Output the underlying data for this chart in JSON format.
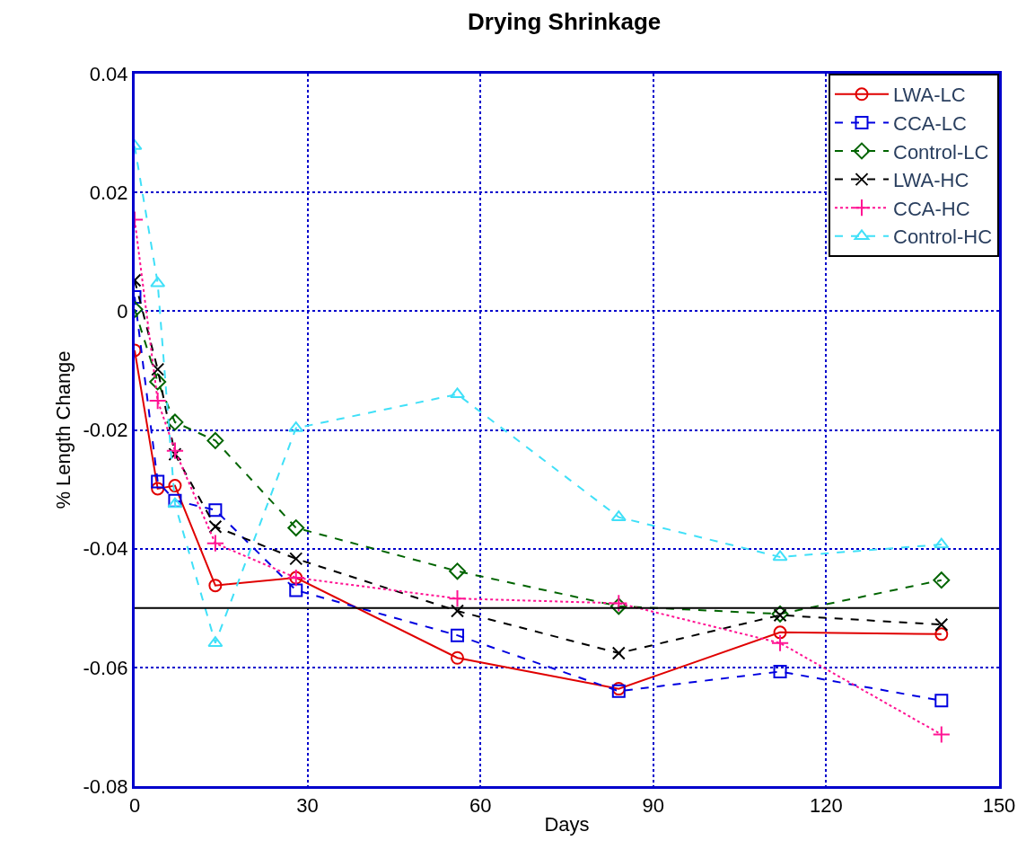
{
  "chart_data": {
    "type": "line",
    "title": "Drying Shrinkage",
    "xlabel": "Days",
    "ylabel": "% Length Change",
    "x": [
      0,
      4,
      7,
      14,
      28,
      56,
      84,
      112,
      140
    ],
    "series": [
      {
        "name": "LWA-LC",
        "color": "#e00000",
        "marker": "circle",
        "line_style": "solid",
        "values": [
          -0.0066,
          -0.0299,
          -0.0294,
          -0.0462,
          -0.0449,
          -0.0584,
          -0.0636,
          -0.0541,
          -0.0544
        ]
      },
      {
        "name": "CCA-LC",
        "color": "#0000e0",
        "marker": "square",
        "line_style": "dashed",
        "values": [
          0.0024,
          -0.0287,
          -0.0319,
          -0.0335,
          -0.047,
          -0.0546,
          -0.064,
          -0.0607,
          -0.0656
        ]
      },
      {
        "name": "Control-LC",
        "color": "#006400",
        "marker": "diamond",
        "line_style": "dashed",
        "values": [
          0.0003,
          -0.0119,
          -0.0187,
          -0.0218,
          -0.0365,
          -0.0438,
          -0.0497,
          -0.051,
          -0.0453
        ]
      },
      {
        "name": "LWA-HC",
        "color": "#000000",
        "marker": "x",
        "line_style": "dashed",
        "values": [
          0.0052,
          -0.0098,
          -0.0241,
          -0.0363,
          -0.0417,
          -0.0505,
          -0.0576,
          -0.0512,
          -0.0528
        ]
      },
      {
        "name": "CCA-HC",
        "color": "#ff1493",
        "marker": "cross",
        "line_style": "dotted",
        "values": [
          0.0154,
          -0.0151,
          -0.0235,
          -0.0391,
          -0.0449,
          -0.0484,
          -0.0492,
          -0.0559,
          -0.0713
        ]
      },
      {
        "name": "Control-HC",
        "color": "#40e0f8",
        "marker": "triangle",
        "line_style": "dashed",
        "values": [
          0.0278,
          0.0047,
          -0.0325,
          -0.0559,
          -0.0197,
          -0.014,
          -0.0347,
          -0.0414,
          -0.0393
        ]
      }
    ],
    "xlim": [
      0,
      150
    ],
    "xticks": [
      0,
      30,
      60,
      90,
      120,
      150
    ],
    "ylim": [
      -0.08,
      0.04
    ],
    "yticks": [
      -0.08,
      -0.06,
      -0.04,
      -0.02,
      0,
      0.02,
      0.04
    ],
    "ref_lines": [
      {
        "axis": "y",
        "value": -0.05,
        "color": "#000000",
        "line_style": "solid"
      }
    ],
    "grid": true,
    "legend": "top right"
  }
}
